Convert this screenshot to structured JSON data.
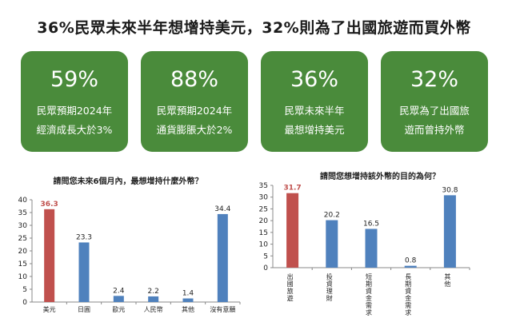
{
  "headline": "36%民眾未來半年想增持美元，32%則為了出國旅遊而買外幣",
  "cards": [
    {
      "pct": "59%",
      "line1": "民眾預期2024年",
      "line2": "經濟成長大於3%"
    },
    {
      "pct": "88%",
      "line1": "民眾預期2024年",
      "line2": "通貨膨脹大於2%"
    },
    {
      "pct": "36%",
      "line1": "民眾未來半年",
      "line2": "最想增持美元"
    },
    {
      "pct": "32%",
      "line1": "民眾為了出國旅",
      "line2": "遊而曾持外幣"
    }
  ],
  "colors": {
    "card": "#4a8b3b",
    "highlight": "#c0504d",
    "bar": "#4f81bd"
  },
  "chart_data": [
    {
      "type": "bar",
      "title": "請問您未來6個月內，最想增持什麼外幣？",
      "categories": [
        "美元",
        "日圓",
        "歐元",
        "人民幣",
        "其他",
        "沒有意願"
      ],
      "values": [
        36.3,
        23.3,
        2.4,
        2.2,
        1.4,
        34.4
      ],
      "highlight_index": 0,
      "ylim": [
        0,
        40
      ],
      "yticks": [
        0,
        5,
        10,
        15,
        20,
        25,
        30,
        35,
        40
      ],
      "grid": false,
      "legend": "none"
    },
    {
      "type": "bar",
      "title": "請問您想增持該外幣的目的為何？",
      "categories": [
        "出國旅遊",
        "投資理財",
        "短期資金需求",
        "長期資金需求",
        "其他"
      ],
      "values": [
        31.7,
        20.2,
        16.5,
        0.8,
        30.8
      ],
      "highlight_index": 0,
      "ylim": [
        0,
        35
      ],
      "yticks": [
        0,
        5,
        10,
        15,
        20,
        25,
        30,
        35
      ],
      "grid": false,
      "legend": "none"
    }
  ]
}
